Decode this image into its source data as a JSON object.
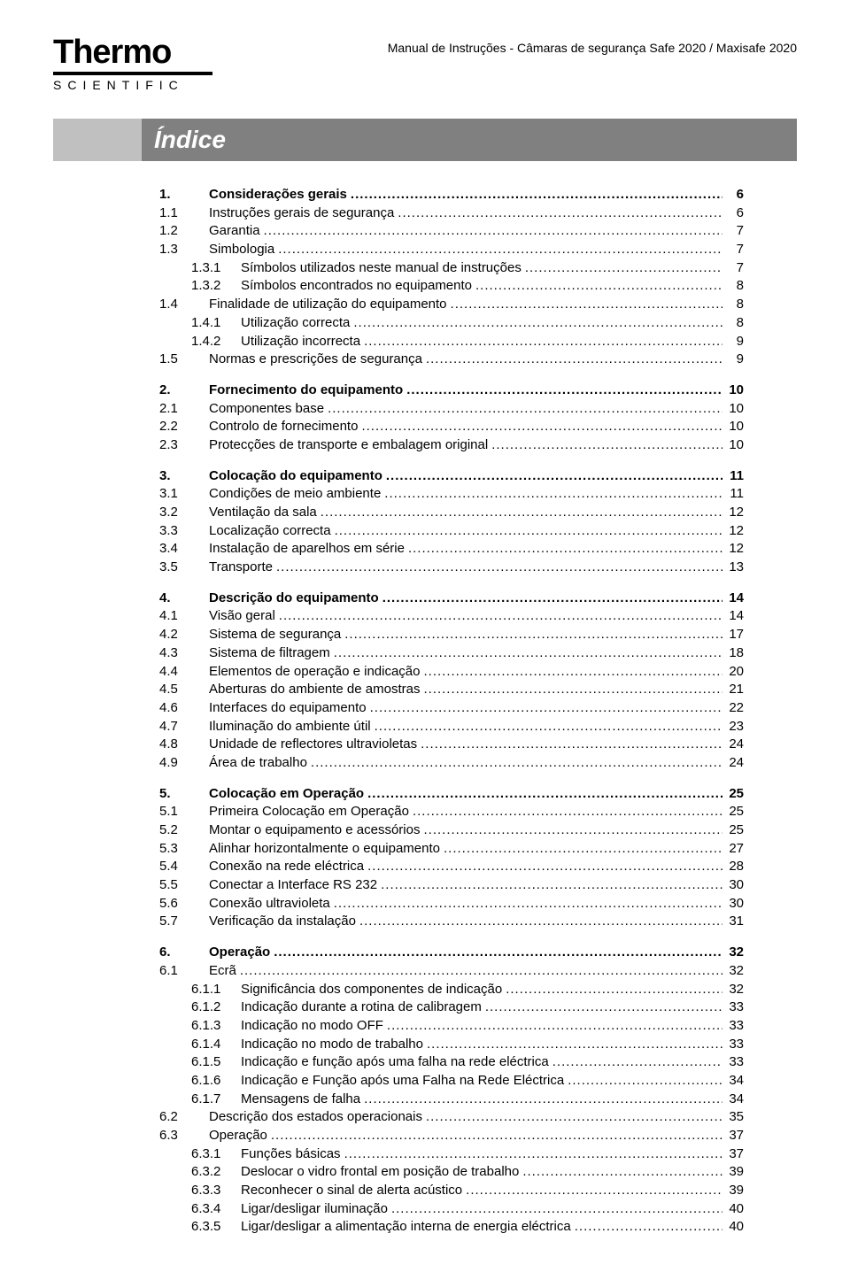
{
  "header": {
    "logo_main": "Thermo",
    "logo_sub": "SCIENTIFIC",
    "doc_title": "Manual de Instruções - Câmaras de segurança Safe 2020 / Maxisafe 2020"
  },
  "title": "Índice",
  "toc": [
    {
      "num": "1.",
      "label": "Considerações gerais",
      "page": "6",
      "level": 1,
      "bold": true,
      "gap": false
    },
    {
      "num": "1.1",
      "label": "Instruções gerais de segurança",
      "page": "6",
      "level": 2,
      "bold": false,
      "gap": false
    },
    {
      "num": "1.2",
      "label": "Garantia",
      "page": "7",
      "level": 2,
      "bold": false,
      "gap": false
    },
    {
      "num": "1.3",
      "label": "Simbologia",
      "page": "7",
      "level": 2,
      "bold": false,
      "gap": false
    },
    {
      "num": "1.3.1",
      "label": "Símbolos utilizados neste manual de instruções",
      "page": "7",
      "level": 3,
      "bold": false,
      "gap": false
    },
    {
      "num": "1.3.2",
      "label": "Símbolos encontrados no equipamento",
      "page": "8",
      "level": 3,
      "bold": false,
      "gap": false
    },
    {
      "num": "1.4",
      "label": "Finalidade de utilização do equipamento",
      "page": "8",
      "level": 2,
      "bold": false,
      "gap": false
    },
    {
      "num": "1.4.1",
      "label": "Utilização  correcta",
      "page": "8",
      "level": 3,
      "bold": false,
      "gap": false
    },
    {
      "num": "1.4.2",
      "label": "Utilização incorrecta",
      "page": "9",
      "level": 3,
      "bold": false,
      "gap": false
    },
    {
      "num": "1.5",
      "label": "Normas e prescrições de segurança",
      "page": "9",
      "level": 2,
      "bold": false,
      "gap": false
    },
    {
      "num": "2.",
      "label": "Fornecimento do equipamento",
      "page": "10",
      "level": 1,
      "bold": true,
      "gap": true
    },
    {
      "num": "2.1",
      "label": "Componentes base",
      "page": "10",
      "level": 2,
      "bold": false,
      "gap": false
    },
    {
      "num": "2.2",
      "label": "Controlo de fornecimento",
      "page": "10",
      "level": 2,
      "bold": false,
      "gap": false
    },
    {
      "num": "2.3",
      "label": "Protecções de transporte e embalagem original",
      "page": "10",
      "level": 2,
      "bold": false,
      "gap": false
    },
    {
      "num": "3.",
      "label": "Colocação do equipamento",
      "page": "11",
      "level": 1,
      "bold": true,
      "gap": true
    },
    {
      "num": "3.1",
      "label": "Condições de meio ambiente",
      "page": "11",
      "level": 2,
      "bold": false,
      "gap": false
    },
    {
      "num": "3.2",
      "label": "Ventilação da sala",
      "page": "12",
      "level": 2,
      "bold": false,
      "gap": false
    },
    {
      "num": "3.3",
      "label": "Localização correcta",
      "page": "12",
      "level": 2,
      "bold": false,
      "gap": false
    },
    {
      "num": "3.4",
      "label": "Instalação de aparelhos em série",
      "page": "12",
      "level": 2,
      "bold": false,
      "gap": false
    },
    {
      "num": "3.5",
      "label": "Transporte",
      "page": "13",
      "level": 2,
      "bold": false,
      "gap": false
    },
    {
      "num": "4.",
      "label": "Descrição do equipamento",
      "page": "14",
      "level": 1,
      "bold": true,
      "gap": true
    },
    {
      "num": "4.1",
      "label": "Visão geral",
      "page": "14",
      "level": 2,
      "bold": false,
      "gap": false
    },
    {
      "num": "4.2",
      "label": "Sistema de segurança",
      "page": "17",
      "level": 2,
      "bold": false,
      "gap": false
    },
    {
      "num": "4.3",
      "label": "Sistema de filtragem",
      "page": "18",
      "level": 2,
      "bold": false,
      "gap": false
    },
    {
      "num": "4.4",
      "label": "Elementos de operação e indicação",
      "page": "20",
      "level": 2,
      "bold": false,
      "gap": false
    },
    {
      "num": "4.5",
      "label": "Aberturas do ambiente de amostras",
      "page": "21",
      "level": 2,
      "bold": false,
      "gap": false
    },
    {
      "num": "4.6",
      "label": "Interfaces do equipamento",
      "page": "22",
      "level": 2,
      "bold": false,
      "gap": false
    },
    {
      "num": "4.7",
      "label": "Iluminação do ambiente útil",
      "page": "23",
      "level": 2,
      "bold": false,
      "gap": false
    },
    {
      "num": "4.8",
      "label": "Unidade de reflectores ultravioletas",
      "page": "24",
      "level": 2,
      "bold": false,
      "gap": false
    },
    {
      "num": "4.9",
      "label": "Área de trabalho",
      "page": "24",
      "level": 2,
      "bold": false,
      "gap": false
    },
    {
      "num": "5.",
      "label": "Colocação em Operação",
      "page": "25",
      "level": 1,
      "bold": true,
      "gap": true
    },
    {
      "num": "5.1",
      "label": "Primeira Colocação em Operação",
      "page": "25",
      "level": 2,
      "bold": false,
      "gap": false
    },
    {
      "num": "5.2",
      "label": "Montar o equipamento e acessórios",
      "page": "25",
      "level": 2,
      "bold": false,
      "gap": false
    },
    {
      "num": "5.3",
      "label": "Alinhar horizontalmente o equipamento",
      "page": "27",
      "level": 2,
      "bold": false,
      "gap": false
    },
    {
      "num": "5.4",
      "label": "Conexão na rede eléctrica",
      "page": "28",
      "level": 2,
      "bold": false,
      "gap": false
    },
    {
      "num": "5.5",
      "label": "Conectar a Interface RS 232",
      "page": "30",
      "level": 2,
      "bold": false,
      "gap": false
    },
    {
      "num": "5.6",
      "label": "Conexão ultravioleta",
      "page": "30",
      "level": 2,
      "bold": false,
      "gap": false
    },
    {
      "num": "5.7",
      "label": "Verificação da instalação",
      "page": "31",
      "level": 2,
      "bold": false,
      "gap": false
    },
    {
      "num": "6.",
      "label": "Operação",
      "page": "32",
      "level": 1,
      "bold": true,
      "gap": true
    },
    {
      "num": "6.1",
      "label": "Ecrã",
      "page": "32",
      "level": 2,
      "bold": false,
      "gap": false
    },
    {
      "num": "6.1.1",
      "label": "Significância dos componentes de indicação",
      "page": "32",
      "level": 3,
      "bold": false,
      "gap": false
    },
    {
      "num": "6.1.2",
      "label": "Indicação durante a rotina de calibragem",
      "page": "33",
      "level": 3,
      "bold": false,
      "gap": false
    },
    {
      "num": "6.1.3",
      "label": "Indicação no modo OFF",
      "page": "33",
      "level": 3,
      "bold": false,
      "gap": false
    },
    {
      "num": "6.1.4",
      "label": "Indicação no modo de trabalho",
      "page": "33",
      "level": 3,
      "bold": false,
      "gap": false
    },
    {
      "num": "6.1.5",
      "label": "Indicação e função após uma falha na rede eléctrica",
      "page": "33",
      "level": 3,
      "bold": false,
      "gap": false
    },
    {
      "num": "6.1.6",
      "label": "Indicação e Função após uma Falha na Rede Eléctrica",
      "page": "34",
      "level": 3,
      "bold": false,
      "gap": false
    },
    {
      "num": "6.1.7",
      "label": "Mensagens de falha",
      "page": "34",
      "level": 3,
      "bold": false,
      "gap": false
    },
    {
      "num": "6.2",
      "label": "Descrição dos estados operacionais",
      "page": "35",
      "level": 2,
      "bold": false,
      "gap": false
    },
    {
      "num": "6.3",
      "label": "Operação",
      "page": "37",
      "level": 2,
      "bold": false,
      "gap": false
    },
    {
      "num": "6.3.1",
      "label": "Funções básicas",
      "page": "37",
      "level": 3,
      "bold": false,
      "gap": false
    },
    {
      "num": "6.3.2",
      "label": "Deslocar o vidro frontal em posição de trabalho",
      "page": "39",
      "level": 3,
      "bold": false,
      "gap": false
    },
    {
      "num": "6.3.3",
      "label": "Reconhecer o sinal de alerta acústico",
      "page": "39",
      "level": 3,
      "bold": false,
      "gap": false
    },
    {
      "num": "6.3.4",
      "label": "Ligar/desligar iluminação",
      "page": "40",
      "level": 3,
      "bold": false,
      "gap": false
    },
    {
      "num": "6.3.5",
      "label": "Ligar/desligar a alimentação interna de energia eléctrica",
      "page": "40",
      "level": 3,
      "bold": false,
      "gap": false
    }
  ]
}
